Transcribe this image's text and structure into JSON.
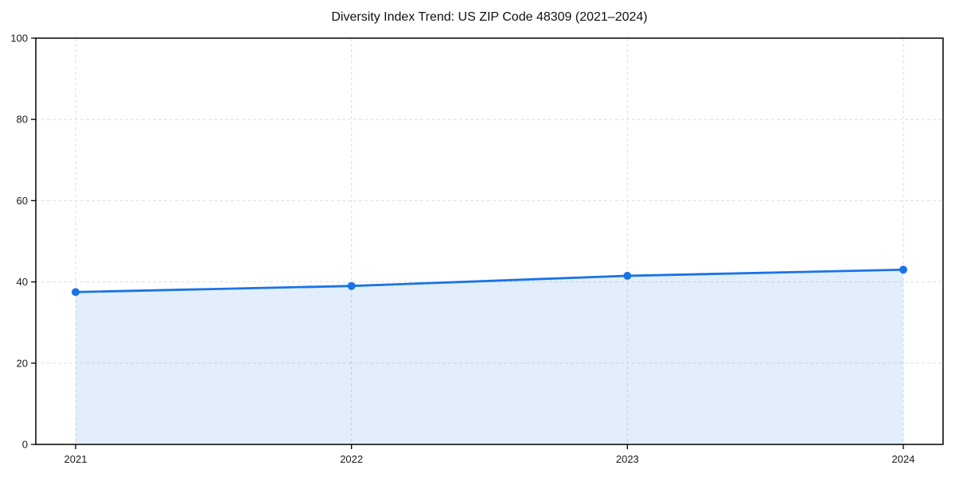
{
  "colors": {
    "line": "#1a73e8",
    "marker": "#1a73e8",
    "fill": "#1a73e8",
    "fill_opacity": 0.12,
    "grid": "#dfdfdf",
    "spine": "#000000",
    "text": "#1a1a1a",
    "background": "#ffffff"
  },
  "chart_data": {
    "type": "line",
    "title": "Diversity Index Trend: US ZIP Code 48309 (2021–2024)",
    "x": [
      2021,
      2022,
      2023,
      2024
    ],
    "x_tick_labels": [
      "2021",
      "2022",
      "2023",
      "2024"
    ],
    "series": [
      {
        "name": "Diversity Index",
        "values": [
          37.5,
          39.0,
          41.5,
          43.0
        ]
      }
    ],
    "y_ticks": [
      0,
      20,
      40,
      60,
      80,
      100
    ],
    "ylim": [
      0,
      100
    ],
    "xlabel": "",
    "ylabel": "",
    "grid": true,
    "grid_style": "dashed",
    "legend": false,
    "area_fill": true,
    "markers": true,
    "marker_style": "circle"
  }
}
